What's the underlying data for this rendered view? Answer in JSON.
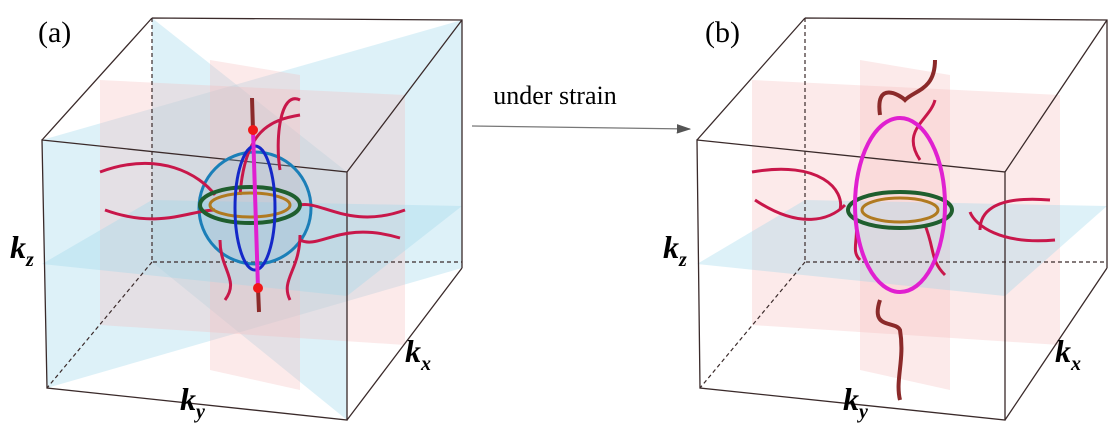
{
  "panels": [
    {
      "label": "(a)",
      "axes": [
        {
          "symbol": "k",
          "subscript": "z"
        },
        {
          "symbol": "k",
          "subscript": "y"
        },
        {
          "symbol": "k",
          "subscript": "x"
        }
      ]
    },
    {
      "label": "(b)",
      "axes": [
        {
          "symbol": "k",
          "subscript": "z"
        },
        {
          "symbol": "k",
          "subscript": "y"
        },
        {
          "symbol": "k",
          "subscript": "x"
        }
      ]
    }
  ],
  "arrow_label": "under strain"
}
